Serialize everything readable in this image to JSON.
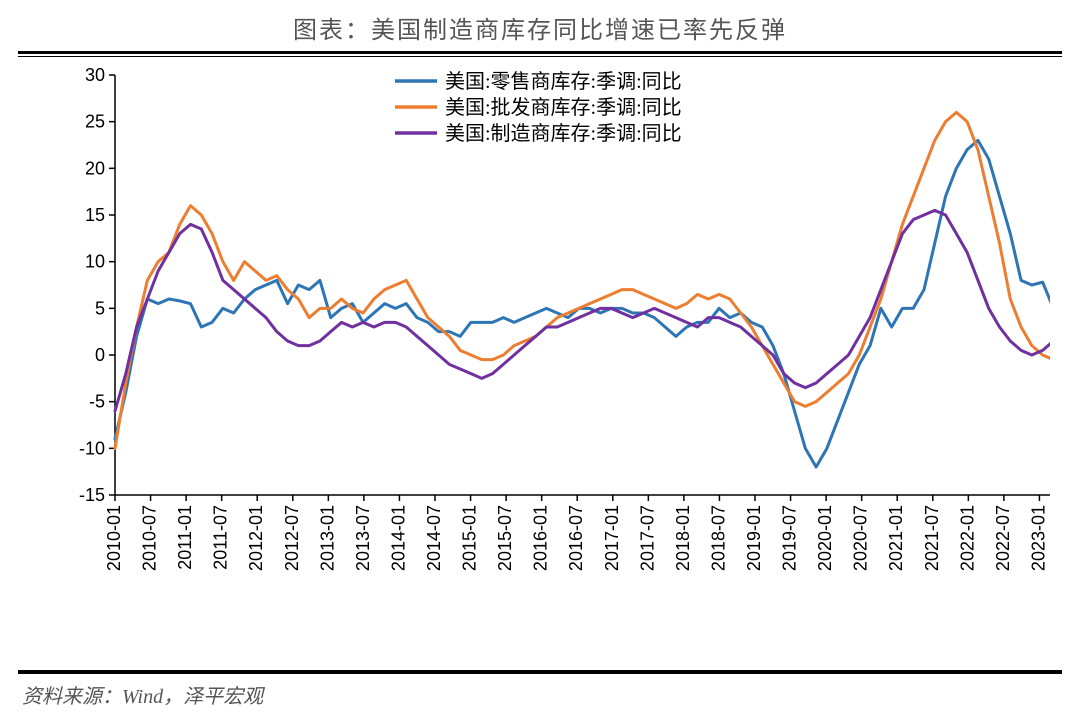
{
  "title": "图表：美国制造商库存同比增速已率先反弹",
  "source": "资料来源：Wind，泽平宏观",
  "chart": {
    "type": "line",
    "background_color": "#ffffff",
    "ylim": [
      -15,
      30
    ],
    "ytick_step": 5,
    "yticks": [
      -15,
      -10,
      -5,
      0,
      5,
      10,
      15,
      20,
      25,
      30
    ],
    "x_labels": [
      "2010-01",
      "2010-07",
      "2011-01",
      "2011-07",
      "2012-01",
      "2012-07",
      "2013-01",
      "2013-07",
      "2014-01",
      "2014-07",
      "2015-01",
      "2015-07",
      "2016-01",
      "2016-07",
      "2017-01",
      "2017-07",
      "2018-01",
      "2018-07",
      "2019-01",
      "2019-07",
      "2020-01",
      "2020-07",
      "2021-01",
      "2021-07",
      "2022-01",
      "2022-07",
      "2023-01",
      "2023-07"
    ],
    "tick_fontsize": 18,
    "tick_color": "#000000",
    "line_width": 3,
    "legend": {
      "position": "top-center",
      "fontsize": 20,
      "color": "#000000",
      "items": [
        {
          "label": "美国:零售商库存:季调:同比",
          "color": "#2e75b6"
        },
        {
          "label": "美国:批发商库存:季调:同比",
          "color": "#ed7d31"
        },
        {
          "label": "美国:制造商库存:季调:同比",
          "color": "#7030a0"
        }
      ]
    },
    "series": [
      {
        "name": "retail",
        "color": "#2e75b6",
        "data": [
          -9,
          -4,
          2,
          6,
          5.5,
          6,
          5.8,
          5.5,
          3,
          3.5,
          5,
          4.5,
          6,
          7,
          7.5,
          8,
          5.5,
          7.5,
          7,
          8,
          4,
          5,
          5.5,
          3.5,
          4.5,
          5.5,
          5,
          5.5,
          4,
          3.5,
          2.5,
          2.5,
          2,
          3.5,
          3.5,
          3.5,
          4,
          3.5,
          4,
          4.5,
          5,
          4.5,
          4,
          5,
          5,
          4.5,
          5,
          5,
          4.5,
          4.5,
          4,
          3,
          2,
          3,
          3.5,
          3.5,
          5,
          4,
          4.5,
          3.5,
          3,
          1,
          -2,
          -6,
          -10,
          -12,
          -10,
          -7,
          -4,
          -1,
          1,
          5,
          3,
          5,
          5,
          7,
          12,
          17,
          20,
          22,
          23,
          21,
          17,
          13,
          8,
          7.5,
          7.8,
          5,
          4.5,
          4.5
        ]
      },
      {
        "name": "wholesale",
        "color": "#ed7d31",
        "data": [
          -10,
          -3,
          3,
          8,
          10,
          11,
          14,
          16,
          15,
          13,
          10,
          8,
          10,
          9,
          8,
          8.5,
          7,
          6,
          4,
          5,
          5,
          6,
          5,
          4.5,
          6,
          7,
          7.5,
          8,
          6,
          4,
          3,
          2,
          0.5,
          0,
          -0.5,
          -0.5,
          0,
          1,
          1.5,
          2,
          3,
          4,
          4.5,
          5,
          5.5,
          6,
          6.5,
          7,
          7,
          6.5,
          6,
          5.5,
          5,
          5.5,
          6.5,
          6,
          6.5,
          6,
          4.5,
          3,
          1,
          -1,
          -3,
          -5,
          -5.5,
          -5,
          -4,
          -3,
          -2,
          0,
          3,
          6,
          10,
          14,
          17,
          20,
          23,
          25,
          26,
          25,
          22,
          17,
          12,
          6,
          3,
          1,
          0,
          -0.5,
          -1,
          -1
        ]
      },
      {
        "name": "manufacturer",
        "color": "#7030a0",
        "data": [
          -6,
          -2,
          3,
          6,
          9,
          11,
          13,
          14,
          13.5,
          11,
          8,
          7,
          6,
          5,
          4,
          2.5,
          1.5,
          1,
          1,
          1.5,
          2.5,
          3.5,
          3,
          3.5,
          3,
          3.5,
          3.5,
          3,
          2,
          1,
          0,
          -1,
          -1.5,
          -2,
          -2.5,
          -2,
          -1,
          0,
          1,
          2,
          3,
          3,
          3.5,
          4,
          4.5,
          5,
          5,
          4.5,
          4,
          4.5,
          5,
          4.5,
          4,
          3.5,
          3,
          4,
          4,
          3.5,
          3,
          2,
          1,
          0,
          -2,
          -3,
          -3.5,
          -3,
          -2,
          -1,
          0,
          2,
          4,
          7,
          10,
          13,
          14.5,
          15,
          15.5,
          15,
          13,
          11,
          8,
          5,
          3,
          1.5,
          0.5,
          0,
          0.5,
          1.5,
          2,
          2
        ]
      }
    ]
  }
}
